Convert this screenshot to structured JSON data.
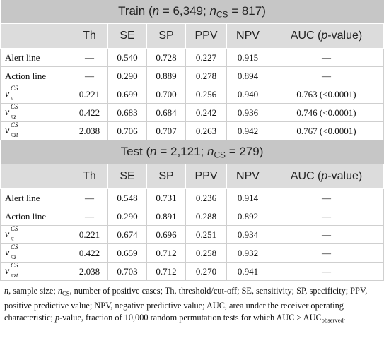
{
  "sections": [
    {
      "title": [
        "Train (",
        "n",
        " = 6,349; ",
        "n",
        "CS",
        " = 817)"
      ],
      "columns": [
        "Th",
        "SE",
        "SP",
        "PPV",
        "NPV",
        [
          "AUC (",
          "p",
          "-value)"
        ]
      ],
      "rows": [
        {
          "label": "Alert line",
          "cells": [
            "—",
            "0.540",
            "0.728",
            "0.227",
            "0.915",
            "—"
          ]
        },
        {
          "label": "Action line",
          "cells": [
            "—",
            "0.290",
            "0.889",
            "0.278",
            "0.894",
            "—"
          ]
        },
        {
          "label": {
            "base": "ν",
            "sup": "CS",
            "sub": "π"
          },
          "cells": [
            "0.221",
            "0.699",
            "0.700",
            "0.256",
            "0.940",
            "0.763 (<0.0001)"
          ]
        },
        {
          "label": {
            "base": "ν",
            "sup": "CS",
            "sub": "πz"
          },
          "cells": [
            "0.422",
            "0.683",
            "0.684",
            "0.242",
            "0.936",
            "0.746 (<0.0001)"
          ]
        },
        {
          "label": {
            "base": "ν",
            "sup": "CS",
            "sub": "πzt"
          },
          "cells": [
            "2.038",
            "0.706",
            "0.707",
            "0.263",
            "0.942",
            "0.767 (<0.0001)"
          ]
        }
      ]
    },
    {
      "title": [
        "Test (",
        "n",
        " = 2,121; ",
        "n",
        "CS",
        " = 279)"
      ],
      "columns": [
        "Th",
        "SE",
        "SP",
        "PPV",
        "NPV",
        [
          "AUC (",
          "p",
          "-value)"
        ]
      ],
      "rows": [
        {
          "label": "Alert line",
          "cells": [
            "—",
            "0.548",
            "0.731",
            "0.236",
            "0.914",
            "—"
          ]
        },
        {
          "label": "Action line",
          "cells": [
            "—",
            "0.290",
            "0.891",
            "0.288",
            "0.892",
            "—"
          ]
        },
        {
          "label": {
            "base": "ν",
            "sup": "CS",
            "sub": "π"
          },
          "cells": [
            "0.221",
            "0.674",
            "0.696",
            "0.251",
            "0.934",
            "—"
          ]
        },
        {
          "label": {
            "base": "ν",
            "sup": "CS",
            "sub": "πz"
          },
          "cells": [
            "0.422",
            "0.659",
            "0.712",
            "0.258",
            "0.932",
            "—"
          ]
        },
        {
          "label": {
            "base": "ν",
            "sup": "CS",
            "sub": "πzt"
          },
          "cells": [
            "2.038",
            "0.703",
            "0.712",
            "0.270",
            "0.941",
            "—"
          ]
        }
      ]
    }
  ],
  "footnote": [
    "n",
    ", sample size; ",
    "n",
    "CS",
    ", number of positive cases; Th, threshold/cut-off; SE, sensitivity; SP, specificity; PPV, positive predictive value; NPV, negative predictive value; AUC, area under the receiver operating characteristic; ",
    "p",
    "-value, fraction of 10,000 random permutation tests for which AUC ≥ AUC",
    "observed",
    "."
  ]
}
